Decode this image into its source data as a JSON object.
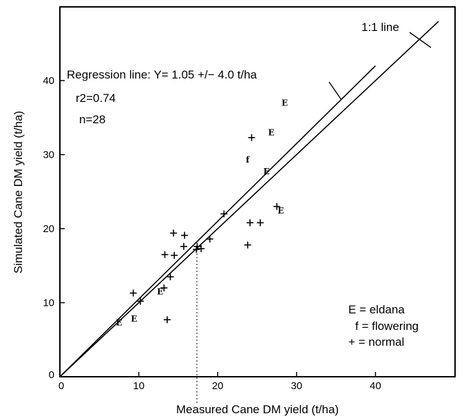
{
  "chart_data": {
    "type": "scatter",
    "title": "",
    "xlabel": "Measured Cane DM yield (t/ha)",
    "ylabel": "Simulated Cane DM yield (t/ha)",
    "xlim": [
      0,
      49
    ],
    "ylim": [
      0,
      49
    ],
    "x_ticks": [
      0,
      10,
      20,
      30,
      40
    ],
    "y_ticks": [
      0,
      10,
      20,
      30,
      40
    ],
    "grid": false,
    "lines": [
      {
        "name": "1:1 line",
        "label": "1:1 line",
        "x": [
          0,
          48
        ],
        "y": [
          0,
          48
        ]
      },
      {
        "name": "Regression line",
        "x": [
          0,
          40
        ],
        "y": [
          0,
          42
        ]
      }
    ],
    "annotations": {
      "regression": "Regression line: Y= 1.05 +/− 4.0 t/ha",
      "r2": "r2=0.74",
      "n": "n=28"
    },
    "legend": {
      "position": "bottom-right",
      "entries": [
        "E = eldana",
        "f = flowering",
        "+ = normal"
      ]
    },
    "points": [
      {
        "x": 7.5,
        "y": 7.3,
        "marker": "E"
      },
      {
        "x": 9.3,
        "y": 11.3,
        "marker": "+"
      },
      {
        "x": 9.4,
        "y": 7.8,
        "marker": "E"
      },
      {
        "x": 10.2,
        "y": 10.2,
        "marker": "+"
      },
      {
        "x": 12.7,
        "y": 11.5,
        "marker": "E"
      },
      {
        "x": 13.2,
        "y": 12.0,
        "marker": "+"
      },
      {
        "x": 13.3,
        "y": 16.5,
        "marker": "+"
      },
      {
        "x": 13.6,
        "y": 7.7,
        "marker": "+"
      },
      {
        "x": 14.0,
        "y": 13.5,
        "marker": "+"
      },
      {
        "x": 14.5,
        "y": 16.4,
        "marker": "+"
      },
      {
        "x": 14.4,
        "y": 19.4,
        "marker": "+"
      },
      {
        "x": 15.7,
        "y": 17.6,
        "marker": "+"
      },
      {
        "x": 15.8,
        "y": 19.1,
        "marker": "+"
      },
      {
        "x": 17.3,
        "y": 17.2,
        "marker": "+"
      },
      {
        "x": 17.4,
        "y": 17.6,
        "marker": "+"
      },
      {
        "x": 17.9,
        "y": 17.3,
        "marker": "+"
      },
      {
        "x": 19.0,
        "y": 18.6,
        "marker": "+"
      },
      {
        "x": 20.8,
        "y": 22.0,
        "marker": "+"
      },
      {
        "x": 23.8,
        "y": 29.3,
        "marker": "f"
      },
      {
        "x": 23.8,
        "y": 17.8,
        "marker": "+"
      },
      {
        "x": 24.1,
        "y": 20.8,
        "marker": "+"
      },
      {
        "x": 24.3,
        "y": 32.3,
        "marker": "+"
      },
      {
        "x": 25.4,
        "y": 20.8,
        "marker": "+"
      },
      {
        "x": 26.2,
        "y": 27.7,
        "marker": "E"
      },
      {
        "x": 26.8,
        "y": 33.0,
        "marker": "E"
      },
      {
        "x": 27.5,
        "y": 23.0,
        "marker": "+"
      },
      {
        "x": 28.0,
        "y": 22.4,
        "marker": "E"
      },
      {
        "x": 28.5,
        "y": 37.0,
        "marker": "E"
      }
    ]
  }
}
